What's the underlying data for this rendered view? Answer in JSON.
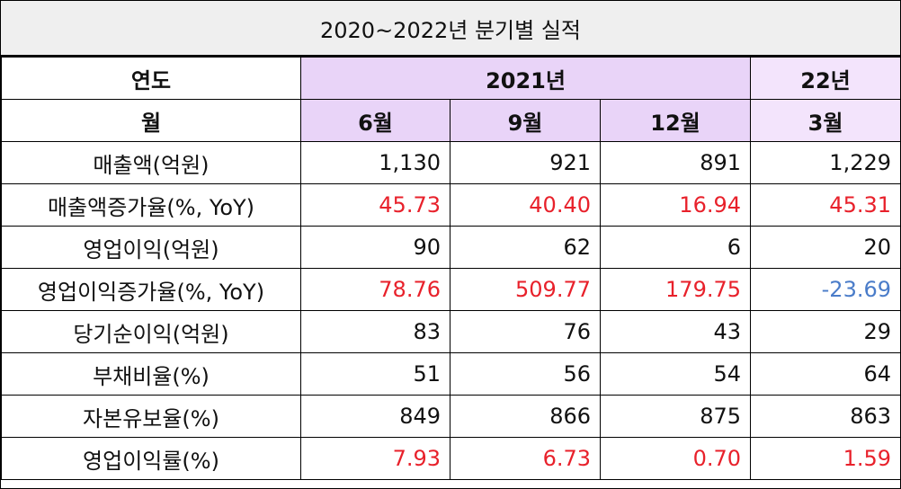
{
  "title": "2020~2022년 분기별 실적",
  "header": {
    "year_label": "연도",
    "year_groups": [
      "2021년",
      "22년"
    ],
    "month_label": "월",
    "months": [
      "6월",
      "9월",
      "12월",
      "3월"
    ]
  },
  "table": {
    "rows": [
      {
        "label": "매출액(억원)",
        "values": [
          "1,130",
          "921",
          "891",
          "1,229"
        ]
      },
      {
        "label": "매출액증가율(%, YoY)",
        "values": [
          "45.73",
          "40.40",
          "16.94",
          "45.31"
        ]
      },
      {
        "label": "영업이익(억원)",
        "values": [
          "90",
          "62",
          "6",
          "20"
        ]
      },
      {
        "label": "영업이익증가율(%, YoY)",
        "values": [
          "78.76",
          "509.77",
          "179.75",
          "-23.69"
        ]
      },
      {
        "label": "당기순이익(억원)",
        "values": [
          "83",
          "76",
          "43",
          "29"
        ]
      },
      {
        "label": "부채비율(%)",
        "values": [
          "51",
          "56",
          "54",
          "64"
        ]
      },
      {
        "label": "자본유보율(%)",
        "values": [
          "849",
          "866",
          "875",
          "863"
        ]
      },
      {
        "label": "영업이익률(%)",
        "values": [
          "7.93",
          "6.73",
          "0.70",
          "1.59"
        ]
      }
    ]
  }
}
